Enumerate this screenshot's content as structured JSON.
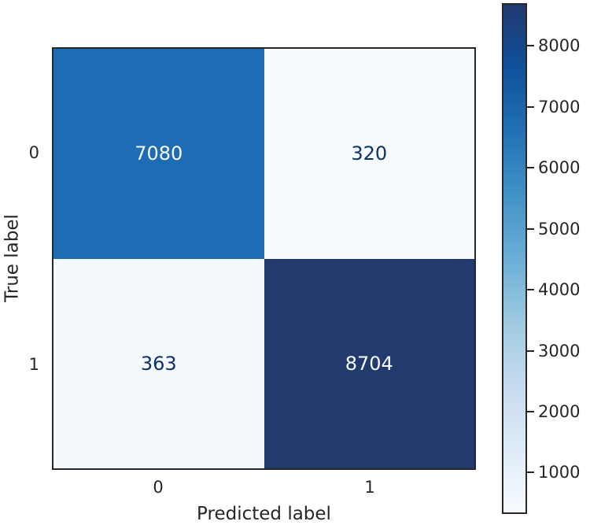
{
  "chart_data": {
    "type": "heatmap",
    "title": "",
    "xlabel": "Predicted label",
    "ylabel": "True label",
    "x_categories": [
      "0",
      "1"
    ],
    "y_categories": [
      "0",
      "1"
    ],
    "matrix": [
      [
        7080,
        320
      ],
      [
        363,
        8704
      ]
    ],
    "vmin": 320,
    "vmax": 8704,
    "colormap": "Blues",
    "axis_color": "#262626",
    "cell_colors": [
      [
        "#1e6cb3",
        "#f6fafe"
      ],
      [
        "#f4f9fd",
        "#233a6e"
      ]
    ],
    "cell_text_colors": [
      [
        "#f7fbff",
        "#0d316b"
      ],
      [
        "#0d316b",
        "#f7fbff"
      ]
    ],
    "colorbar": {
      "ticks": [
        1000,
        2000,
        3000,
        4000,
        5000,
        6000,
        7000,
        8000
      ],
      "gradient_stops": [
        "#f7fbff",
        "#deebf7",
        "#c6dbef",
        "#9ecae1",
        "#6baed6",
        "#4292c6",
        "#2171b5",
        "#0f519c",
        "#203a6e"
      ]
    }
  }
}
